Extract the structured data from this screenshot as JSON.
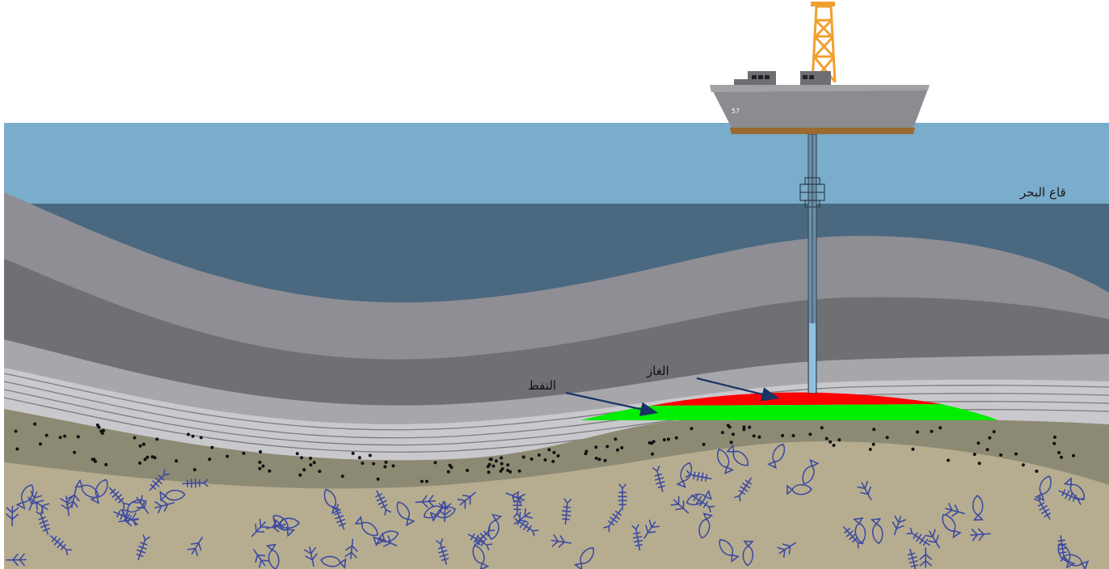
{
  "labels": {
    "seabed": "قاع البحر",
    "gas": "الغاز",
    "oil": "النفط"
  },
  "ship": {
    "hull_number": "57"
  },
  "colors": {
    "sea_surface": "#7aaccb",
    "deep_water": "#4a6880",
    "rock_layer_1": "#8e8e94",
    "rock_layer_2": "#6f6f74",
    "rock_layer_3": "#a7a7ab",
    "rock_layer_4": "#c9c9cd",
    "sandstone": "#8d8a73",
    "fossil_bed": "#b6ad91",
    "gas": "#ff0000",
    "oil": "#00ee00",
    "arrow": "#1a3366",
    "derrick": "#f0a030",
    "ship_hull": "#8a8c90"
  }
}
